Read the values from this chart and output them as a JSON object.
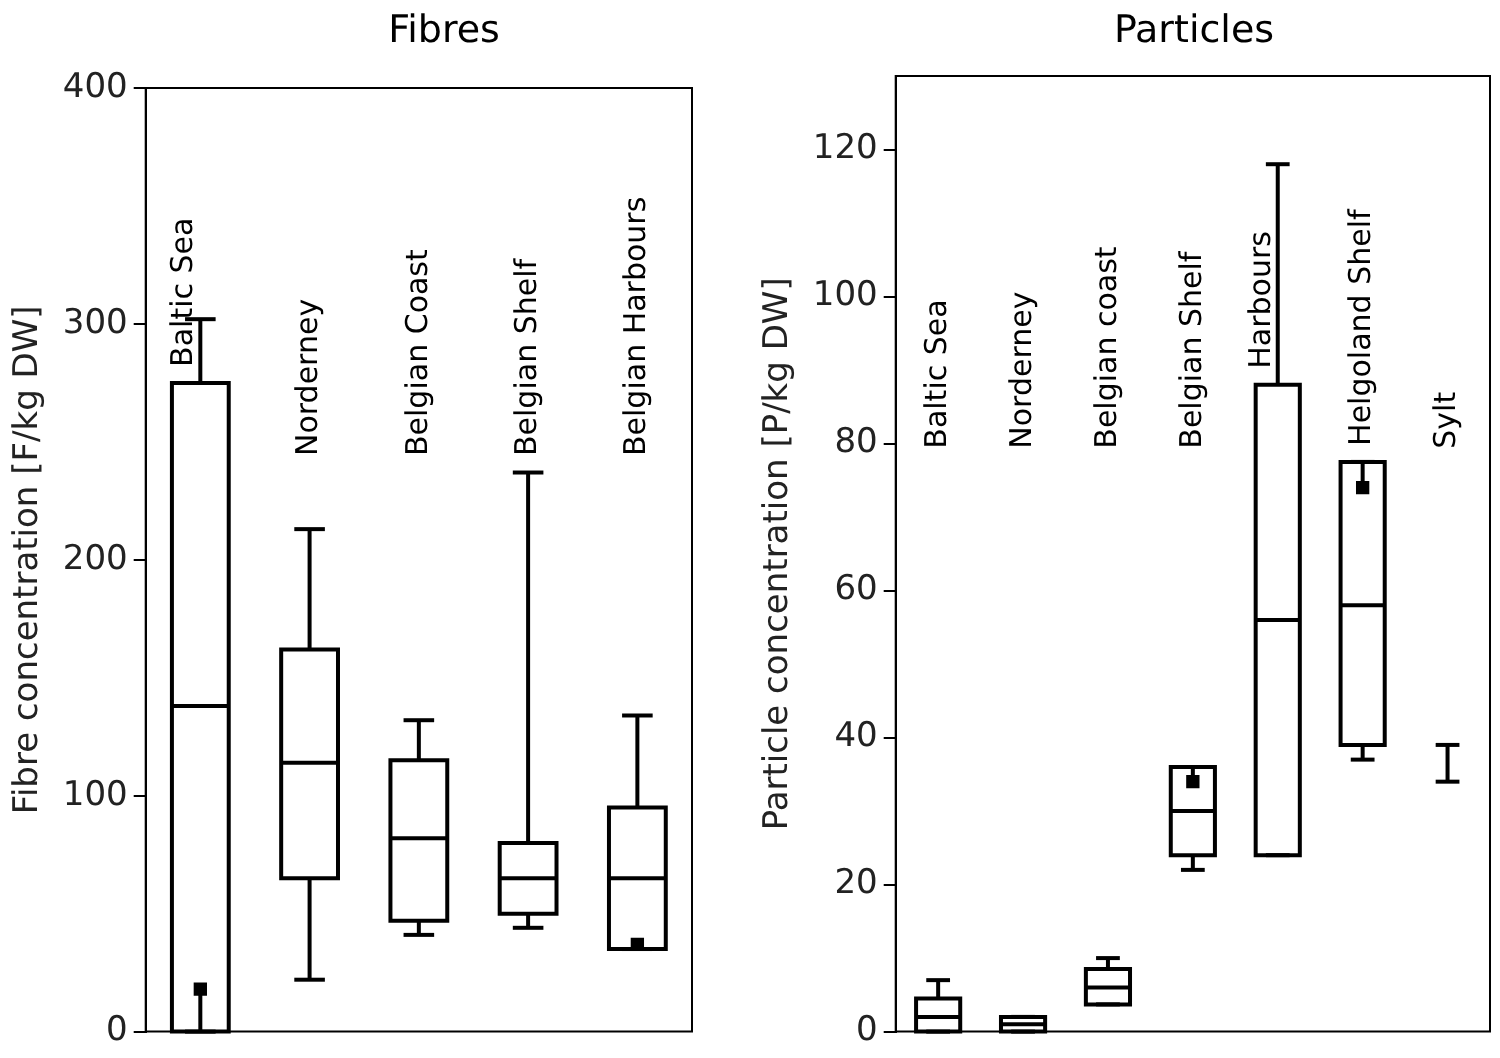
{
  "chart_data": [
    {
      "type": "box",
      "title": "Fibres",
      "ylabel": "Fibre concentration [F/kg DW]",
      "categories": [
        "Baltic Sea",
        "Norderney",
        "Belgian Coast",
        "Belgian Shelf",
        "Belgian Harbours"
      ],
      "boxes": [
        {
          "low": 0,
          "q1": 0,
          "median": 138,
          "q3": 275,
          "high": 302
        },
        {
          "low": 22,
          "q1": 65,
          "median": 114,
          "q3": 162,
          "high": 213
        },
        {
          "low": 41,
          "q1": 47,
          "median": 82,
          "q3": 115,
          "high": 132
        },
        {
          "low": 44,
          "q1": 50,
          "median": 65,
          "q3": 80,
          "high": 237
        },
        {
          "low": 35,
          "q1": 35,
          "median": 65,
          "q3": 95,
          "high": 134
        }
      ],
      "series": [
        {
          "type": "scatter",
          "x": [
            "Baltic Sea",
            "Belgian Harbours"
          ],
          "values": [
            18,
            37
          ],
          "color": "#000000",
          "marker": "square"
        }
      ],
      "ylim": [
        0,
        400
      ],
      "yticks": [
        0,
        100,
        200,
        300,
        400
      ],
      "tick_labels": "y",
      "grid": false,
      "legend": false
    },
    {
      "type": "box",
      "title": "Particles",
      "ylabel": "Particle concentration [P/kg DW]",
      "categories": [
        "Baltic Sea",
        "Norderney",
        "Belgian coast",
        "Belgian Shelf",
        "Harbours",
        "Helgoland Shelf",
        "Sylt"
      ],
      "boxes": [
        {
          "low": 0,
          "q1": 0,
          "median": 2,
          "q3": 4.5,
          "high": 7
        },
        {
          "low": 0,
          "q1": 0,
          "median": 1,
          "q3": 2,
          "high": 2
        },
        {
          "low": 3.7,
          "q1": 3.7,
          "median": 6,
          "q3": 8.5,
          "high": 10
        },
        {
          "low": 22,
          "q1": 24,
          "median": 30,
          "q3": 36,
          "high": 36
        },
        {
          "low": 24,
          "q1": 24,
          "median": 56,
          "q3": 88,
          "high": 118
        },
        {
          "low": 37,
          "q1": 39,
          "median": 58,
          "q3": 77.5,
          "high": 77.5
        },
        {
          "low": 34,
          "q1": 34,
          "q3": 39,
          "high": 39
        }
      ],
      "series": [
        {
          "type": "scatter",
          "x": [
            "Belgian Shelf",
            "Helgoland Shelf"
          ],
          "values": [
            34,
            74
          ],
          "color": "#000000",
          "marker": "square"
        }
      ],
      "ylim": [
        0,
        130
      ],
      "yticks": [
        0,
        20,
        40,
        60,
        80,
        100,
        120
      ],
      "tick_labels": "y",
      "grid": false,
      "legend": false
    }
  ]
}
